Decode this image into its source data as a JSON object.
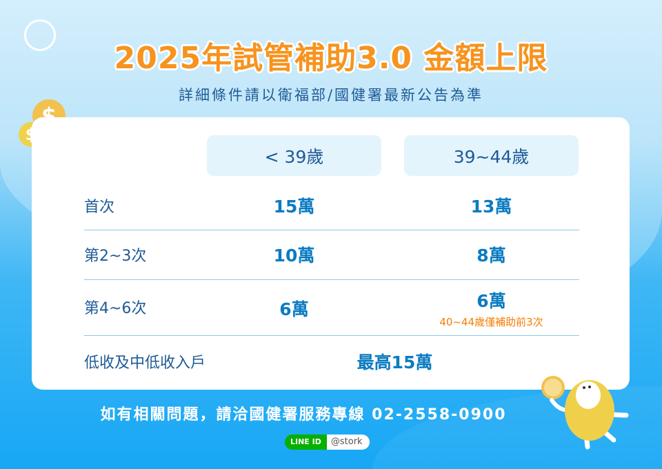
{
  "header": {
    "title": "2025年試管補助3.0 金額上限",
    "subtitle": "詳細條件請以衛福部/國健署最新公告為準"
  },
  "table": {
    "columns": [
      "< 39歲",
      "39~44歲"
    ],
    "rows": [
      {
        "label": "首次",
        "values": [
          "15萬",
          "13萬"
        ]
      },
      {
        "label": "第2~3次",
        "values": [
          "10萬",
          "8萬"
        ]
      },
      {
        "label": "第4~6次",
        "values": [
          "6萬",
          "6萬"
        ],
        "note": "40~44歲僅補助前3次"
      }
    ],
    "low_income": {
      "label": "低收及中低收入戶",
      "value": "最高15萬"
    }
  },
  "footer": {
    "contact": "如有相關問題，請洽國健署服務專線 02-2558-0900",
    "line_label": "LINE ID",
    "line_id": "@stork"
  },
  "colors": {
    "title": "#f7931e",
    "accent": "#0b7bc1",
    "note": "#f57c00",
    "line_green": "#06b000"
  },
  "icons": [
    "stork-logo-icon",
    "dollar-coin-icon",
    "mascot-egg-icon"
  ]
}
